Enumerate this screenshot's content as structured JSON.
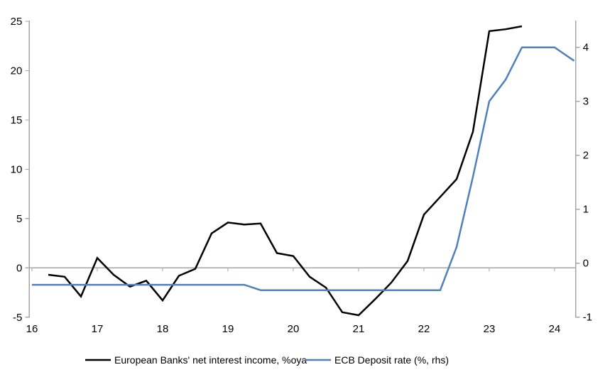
{
  "chart_data": {
    "type": "line",
    "x_axis": {
      "ticks": [
        16,
        17,
        18,
        19,
        20,
        21,
        22,
        23,
        24
      ],
      "tick_labels": [
        "16",
        "17",
        "18",
        "19",
        "20",
        "21",
        "22",
        "23",
        "24"
      ],
      "range": [
        16,
        24.33
      ]
    },
    "left_axis": {
      "ticks": [
        25,
        20,
        15,
        10,
        5,
        0,
        -5
      ],
      "range": [
        -5,
        25
      ]
    },
    "right_axis": {
      "ticks": [
        4,
        3,
        2,
        1,
        0,
        -1
      ],
      "range": [
        -1,
        4.5
      ]
    },
    "zero_line": true,
    "grid": false,
    "legend_position": "bottom",
    "colors": {
      "axis": "#A6A6A6",
      "zero_line": "#A6A6A6",
      "text": "#000000",
      "background": "#FFFFFF"
    },
    "series": [
      {
        "name": "European Banks' net interest income, %oya",
        "axis": "left",
        "color": "#000000",
        "x": [
          16.25,
          16.5,
          16.75,
          17.0,
          17.25,
          17.5,
          17.75,
          18.0,
          18.25,
          18.5,
          18.75,
          19.0,
          19.25,
          19.5,
          19.75,
          20.0,
          20.25,
          20.5,
          20.75,
          21.0,
          21.25,
          21.5,
          21.75,
          22.0,
          22.25,
          22.5,
          22.75,
          23.0,
          23.25,
          23.5
        ],
        "values": [
          -0.7,
          -0.9,
          -2.9,
          1.0,
          -0.7,
          -1.9,
          -1.3,
          -3.3,
          -0.8,
          -0.1,
          3.5,
          4.6,
          4.4,
          4.5,
          1.5,
          1.2,
          -0.9,
          -2.0,
          -4.5,
          -4.8,
          -3.2,
          -1.5,
          0.7,
          5.4,
          7.2,
          9.0,
          13.8,
          24.0,
          24.2,
          24.5
        ]
      },
      {
        "name": "ECB Deposit rate (%, rhs)",
        "axis": "right",
        "color": "#4F81BD",
        "x": [
          16.0,
          16.25,
          16.5,
          16.75,
          17.0,
          17.25,
          17.5,
          17.75,
          18.0,
          18.25,
          18.5,
          18.75,
          19.0,
          19.25,
          19.5,
          19.75,
          20.0,
          20.25,
          20.5,
          20.75,
          21.0,
          21.25,
          21.5,
          21.75,
          22.0,
          22.25,
          22.5,
          22.75,
          23.0,
          23.25,
          23.5,
          23.75,
          24.0,
          24.3
        ],
        "values": [
          -0.4,
          -0.4,
          -0.4,
          -0.4,
          -0.4,
          -0.4,
          -0.4,
          -0.4,
          -0.4,
          -0.4,
          -0.4,
          -0.4,
          -0.4,
          -0.4,
          -0.5,
          -0.5,
          -0.5,
          -0.5,
          -0.5,
          -0.5,
          -0.5,
          -0.5,
          -0.5,
          -0.5,
          -0.5,
          -0.5,
          0.3,
          1.6,
          3.0,
          3.4,
          4.0,
          4.0,
          4.0,
          3.75
        ]
      }
    ]
  }
}
